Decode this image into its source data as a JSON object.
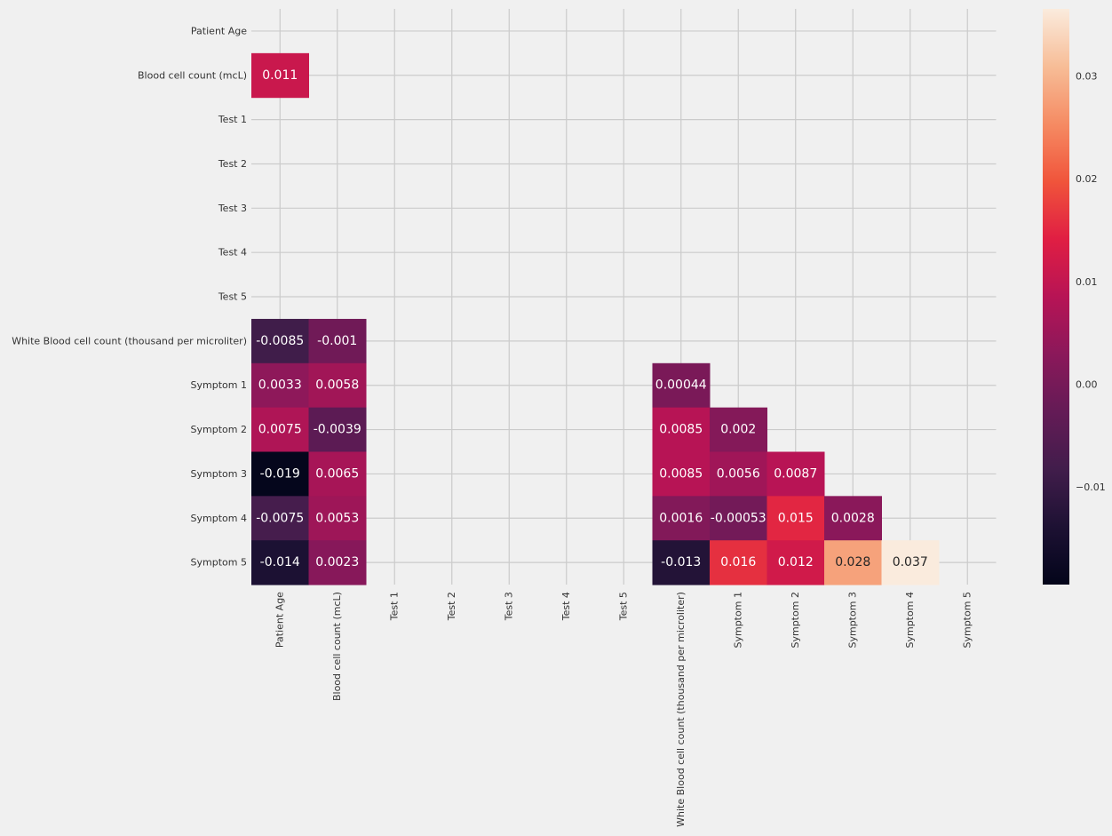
{
  "chart_data": {
    "type": "heatmap",
    "title": "",
    "xlabel": "",
    "ylabel": "",
    "grid": true,
    "mask": "upper-triangle",
    "colormap": "rocket",
    "colorbar": {
      "position": "right",
      "vmin": -0.0195,
      "vmax": 0.0366,
      "ticks": [
        -0.01,
        0.0,
        0.01,
        0.02,
        0.03
      ],
      "tick_labels": [
        "−0.01",
        "0.00",
        "0.01",
        "0.02",
        "0.03"
      ]
    },
    "rows": [
      "Patient Age",
      "Blood cell count (mcL)",
      "Test 1",
      "Test 2",
      "Test 3",
      "Test 4",
      "Test 5",
      "White Blood cell count (thousand per microliter)",
      "Symptom 1",
      "Symptom 2",
      "Symptom 3",
      "Symptom 4",
      "Symptom 5"
    ],
    "columns": [
      "Patient Age",
      "Blood cell count (mcL)",
      "Test 1",
      "Test 2",
      "Test 3",
      "Test 4",
      "Test 5",
      "White Blood cell count (thousand per microliter)",
      "Symptom 1",
      "Symptom 2",
      "Symptom 3",
      "Symptom 4",
      "Symptom 5"
    ],
    "cells": [
      {
        "row": 1,
        "col": 0,
        "value": 0.011,
        "label": "0.011"
      },
      {
        "row": 7,
        "col": 0,
        "value": -0.0085,
        "label": "-0.0085"
      },
      {
        "row": 7,
        "col": 1,
        "value": -0.001,
        "label": "-0.001"
      },
      {
        "row": 8,
        "col": 0,
        "value": 0.0033,
        "label": "0.0033"
      },
      {
        "row": 8,
        "col": 1,
        "value": 0.0058,
        "label": "0.0058"
      },
      {
        "row": 8,
        "col": 7,
        "value": 0.00044,
        "label": "0.00044"
      },
      {
        "row": 9,
        "col": 0,
        "value": 0.0075,
        "label": "0.0075"
      },
      {
        "row": 9,
        "col": 1,
        "value": -0.0039,
        "label": "-0.0039"
      },
      {
        "row": 9,
        "col": 7,
        "value": 0.0085,
        "label": "0.0085"
      },
      {
        "row": 9,
        "col": 8,
        "value": 0.002,
        "label": "0.002"
      },
      {
        "row": 10,
        "col": 0,
        "value": -0.019,
        "label": "-0.019"
      },
      {
        "row": 10,
        "col": 1,
        "value": 0.0065,
        "label": "0.0065"
      },
      {
        "row": 10,
        "col": 7,
        "value": 0.0085,
        "label": "0.0085"
      },
      {
        "row": 10,
        "col": 8,
        "value": 0.0056,
        "label": "0.0056"
      },
      {
        "row": 10,
        "col": 9,
        "value": 0.0087,
        "label": "0.0087"
      },
      {
        "row": 11,
        "col": 0,
        "value": -0.0075,
        "label": "-0.0075"
      },
      {
        "row": 11,
        "col": 1,
        "value": 0.0053,
        "label": "0.0053"
      },
      {
        "row": 11,
        "col": 7,
        "value": 0.0016,
        "label": "0.0016"
      },
      {
        "row": 11,
        "col": 8,
        "value": -0.00053,
        "label": "-0.00053"
      },
      {
        "row": 11,
        "col": 9,
        "value": 0.015,
        "label": "0.015"
      },
      {
        "row": 11,
        "col": 10,
        "value": 0.0028,
        "label": "0.0028"
      },
      {
        "row": 12,
        "col": 0,
        "value": -0.014,
        "label": "-0.014"
      },
      {
        "row": 12,
        "col": 1,
        "value": 0.0023,
        "label": "0.0023"
      },
      {
        "row": 12,
        "col": 7,
        "value": -0.013,
        "label": "-0.013"
      },
      {
        "row": 12,
        "col": 8,
        "value": 0.016,
        "label": "0.016"
      },
      {
        "row": 12,
        "col": 9,
        "value": 0.012,
        "label": "0.012"
      },
      {
        "row": 12,
        "col": 10,
        "value": 0.028,
        "label": "0.028"
      },
      {
        "row": 12,
        "col": 11,
        "value": 0.037,
        "label": "0.037"
      }
    ]
  }
}
